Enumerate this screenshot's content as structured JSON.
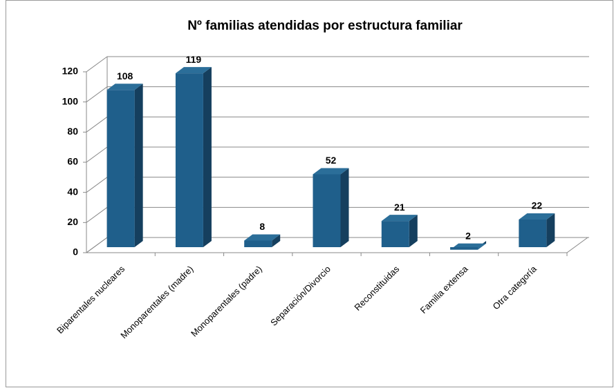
{
  "chart_data": {
    "type": "bar3d",
    "title": "Nº familias atendidas por estructura familiar",
    "categories": [
      "Biparentales nucleares",
      "Monoparentales (madre)",
      "Monoparentales (padre)",
      "Separación/Divorcio",
      "Reconstituidas",
      "Familia extensa",
      "Otra categoría"
    ],
    "values": [
      108,
      119,
      8,
      52,
      21,
      2,
      22
    ],
    "color": "#1f5f8b",
    "ylim": [
      0,
      120
    ],
    "yticks": [
      0,
      20,
      40,
      60,
      80,
      100,
      120
    ],
    "grid": true
  }
}
